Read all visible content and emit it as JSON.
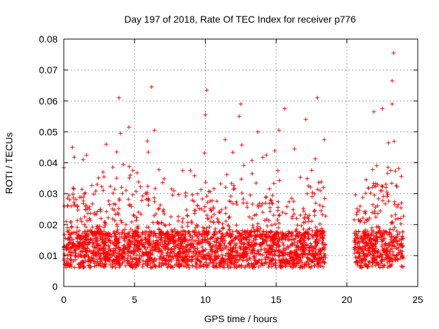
{
  "chart_data": {
    "type": "scatter",
    "title": "Day 197 of 2018, Rate Of TEC Index for receiver p776",
    "xlabel": "GPS time / hours",
    "ylabel": "ROTI / TECUs",
    "xlim": [
      0,
      25
    ],
    "ylim": [
      0,
      0.08
    ],
    "xticks": [
      0,
      5,
      10,
      15,
      20,
      25
    ],
    "xtick_labels": [
      "0",
      "5",
      "10",
      "15",
      "20",
      "25"
    ],
    "yticks": [
      0,
      0.01,
      0.02,
      0.03,
      0.04,
      0.05,
      0.06,
      0.07,
      0.08
    ],
    "ytick_labels": [
      "0",
      "0.01",
      "0.02",
      "0.03",
      "0.04",
      "0.05",
      "0.06",
      "0.07",
      "0.08"
    ],
    "grid": true,
    "marker": "+",
    "color": "#ff0000",
    "data_segments": [
      {
        "x_start": 0.0,
        "x_end": 18.5
      },
      {
        "x_start": 20.5,
        "x_end": 24.0
      }
    ],
    "notable_points": [
      {
        "x": 23.3,
        "y": 0.0755
      },
      {
        "x": 6.2,
        "y": 0.0645
      },
      {
        "x": 23.2,
        "y": 0.0665
      },
      {
        "x": 10.1,
        "y": 0.0635
      },
      {
        "x": 3.9,
        "y": 0.061
      },
      {
        "x": 17.9,
        "y": 0.061
      },
      {
        "x": 12.5,
        "y": 0.059
      },
      {
        "x": 23.2,
        "y": 0.059
      },
      {
        "x": 22.5,
        "y": 0.0575
      },
      {
        "x": 15.6,
        "y": 0.0575
      },
      {
        "x": 21.9,
        "y": 0.0565
      },
      {
        "x": 10.0,
        "y": 0.0555
      },
      {
        "x": 12.4,
        "y": 0.055
      },
      {
        "x": 17.1,
        "y": 0.054
      },
      {
        "x": 4.6,
        "y": 0.0515
      },
      {
        "x": 6.4,
        "y": 0.0505
      },
      {
        "x": 15.2,
        "y": 0.0505
      },
      {
        "x": 4.0,
        "y": 0.0495
      },
      {
        "x": 13.7,
        "y": 0.05
      },
      {
        "x": 11.4,
        "y": 0.0475
      },
      {
        "x": 18.4,
        "y": 0.0475
      },
      {
        "x": 5.9,
        "y": 0.047
      },
      {
        "x": 3.0,
        "y": 0.046
      },
      {
        "x": 0.6,
        "y": 0.045
      },
      {
        "x": 16.3,
        "y": 0.0445
      },
      {
        "x": 1.6,
        "y": 0.0425
      },
      {
        "x": 14.3,
        "y": 0.0425
      },
      {
        "x": 8.4,
        "y": 0.0375
      },
      {
        "x": 0.0,
        "y": 0.012
      }
    ]
  }
}
